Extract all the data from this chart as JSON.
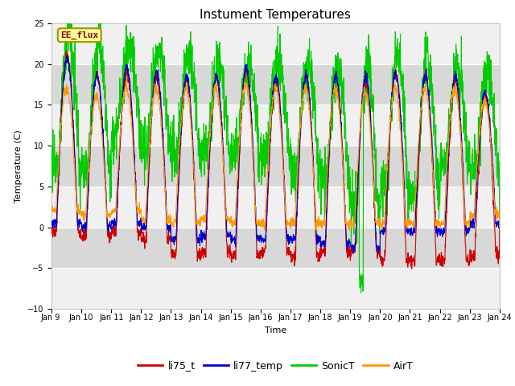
{
  "title": "Instument Temperatures",
  "xlabel": "Time",
  "ylabel": "Temperature (C)",
  "ylim": [
    -10,
    25
  ],
  "yticks": [
    -10,
    -5,
    0,
    5,
    10,
    15,
    20,
    25
  ],
  "x_tick_labels": [
    "Jan 9 ",
    "Jan 10",
    "Jan 11",
    "Jan 12",
    "Jan 13",
    "Jan 14",
    "Jan 15",
    "Jan 16",
    "Jan 17",
    "Jan 18",
    "Jan 19",
    "Jan 20",
    "Jan 21",
    "Jan 22",
    "Jan 23",
    "Jan 24"
  ],
  "colors": {
    "li75_t": "#cc0000",
    "li77_temp": "#0000cc",
    "SonicT": "#00cc00",
    "AirT": "#ff9900"
  },
  "annotation_text": "EE_flux",
  "annotation_color": "#880000",
  "annotation_bg": "#ffff99",
  "annotation_edge": "#999900",
  "background_color": "#ffffff",
  "plot_bg_light": "#f0f0f0",
  "plot_bg_dark": "#d8d8d8",
  "grid_color": "#ffffff",
  "title_fontsize": 11,
  "axis_fontsize": 8,
  "tick_fontsize": 7,
  "legend_fontsize": 9
}
